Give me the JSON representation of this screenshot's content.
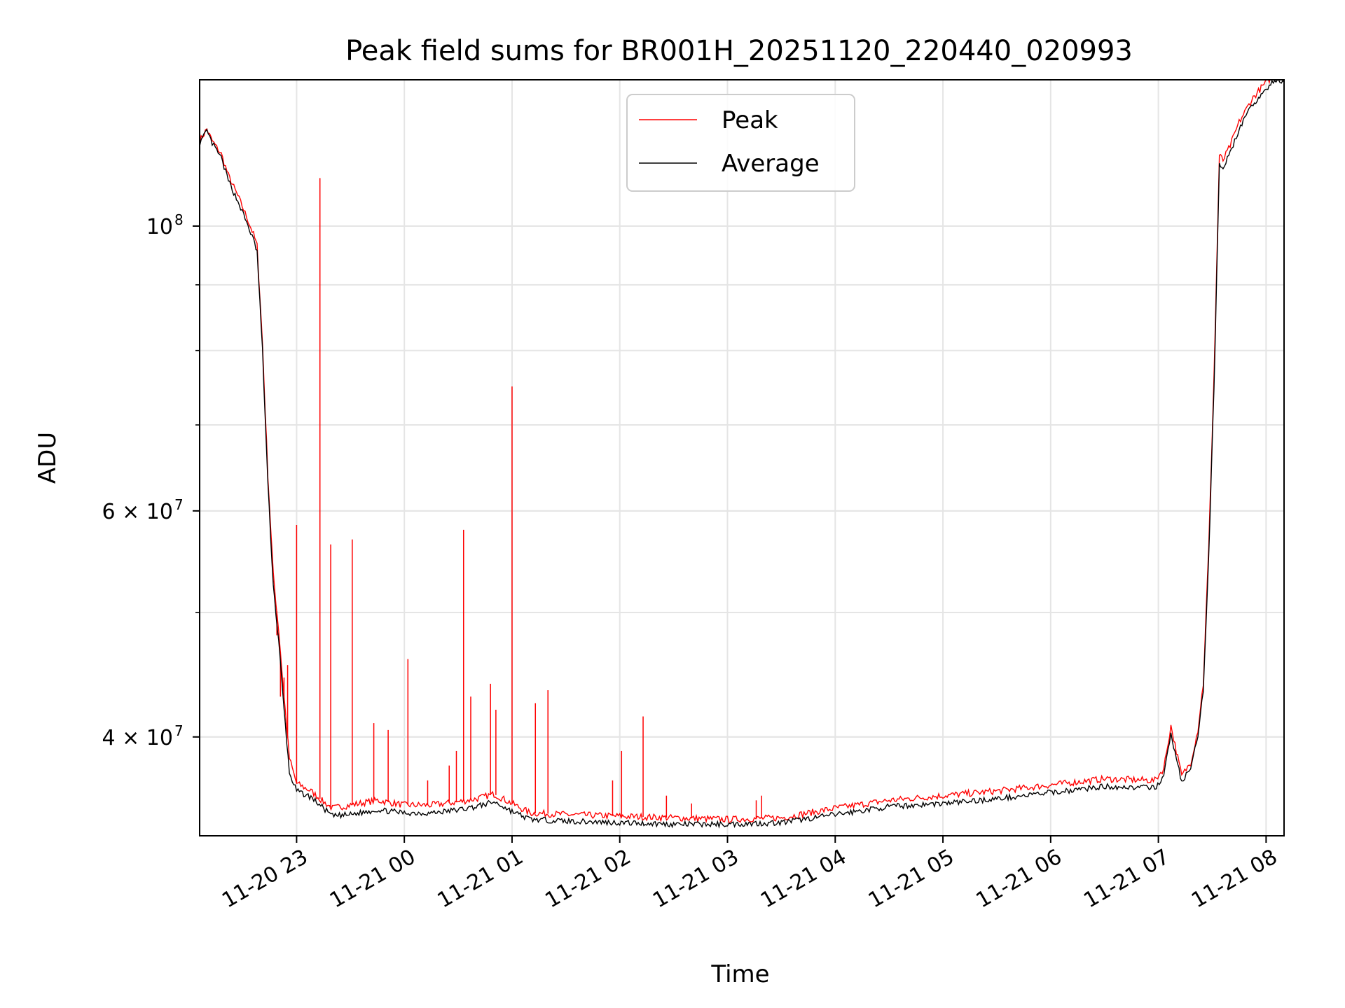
{
  "chart_data": {
    "type": "line",
    "title": "Peak field sums for BR001H_20251120_220440_020993",
    "xlabel": "Time",
    "ylabel": "ADU",
    "yscale": "log",
    "xlim": [
      "2025-11-20 22:06",
      "2025-11-21 08:10"
    ],
    "ylim": [
      33500000,
      130000000
    ],
    "grid": true,
    "legend_position": "top-center",
    "x_ticks": [
      {
        "t": "2025-11-20 23:00",
        "label": "11-20 23"
      },
      {
        "t": "2025-11-21 00:00",
        "label": "11-21 00"
      },
      {
        "t": "2025-11-21 01:00",
        "label": "11-21 01"
      },
      {
        "t": "2025-11-21 02:00",
        "label": "11-21 02"
      },
      {
        "t": "2025-11-21 03:00",
        "label": "11-21 03"
      },
      {
        "t": "2025-11-21 04:00",
        "label": "11-21 04"
      },
      {
        "t": "2025-11-21 05:00",
        "label": "11-21 05"
      },
      {
        "t": "2025-11-21 06:00",
        "label": "11-21 06"
      },
      {
        "t": "2025-11-21 07:00",
        "label": "11-21 07"
      },
      {
        "t": "2025-11-21 08:00",
        "label": "11-21 08"
      }
    ],
    "y_major_ticks": [
      {
        "value": 100000000,
        "base": "10",
        "exp": "8"
      },
      {
        "value": 60000000,
        "base": "6 × 10",
        "exp": "7"
      },
      {
        "value": 40000000,
        "base": "4 × 10",
        "exp": "7"
      }
    ],
    "y_minor_ticks": [
      40000000,
      50000000,
      60000000,
      70000000,
      80000000,
      90000000
    ],
    "series": [
      {
        "name": "Average",
        "color": "#000000",
        "points": [
          [
            "2025-11-20 22:06",
            116000000
          ],
          [
            "2025-11-20 22:10",
            118500000
          ],
          [
            "2025-11-20 22:13",
            116000000
          ],
          [
            "2025-11-20 22:18",
            113000000
          ],
          [
            "2025-11-20 22:22",
            108500000
          ],
          [
            "2025-11-20 22:28",
            104000000
          ],
          [
            "2025-11-20 22:33",
            100000000
          ],
          [
            "2025-11-20 22:36",
            97500000
          ],
          [
            "2025-11-20 22:38",
            95500000
          ],
          [
            "2025-11-20 22:41",
            80000000
          ],
          [
            "2025-11-20 22:44",
            63000000
          ],
          [
            "2025-11-20 22:47",
            52500000
          ],
          [
            "2025-11-20 22:50",
            47500000
          ],
          [
            "2025-11-20 22:53",
            42000000
          ],
          [
            "2025-11-20 22:56",
            37500000
          ],
          [
            "2025-11-20 23:00",
            36300000
          ],
          [
            "2025-11-20 23:08",
            35900000
          ],
          [
            "2025-11-20 23:15",
            35200000
          ],
          [
            "2025-11-20 23:20",
            34700000
          ],
          [
            "2025-11-20 23:30",
            34800000
          ],
          [
            "2025-11-20 23:45",
            35100000
          ],
          [
            "2025-11-21 00:00",
            34900000
          ],
          [
            "2025-11-21 00:15",
            34900000
          ],
          [
            "2025-11-21 00:30",
            35100000
          ],
          [
            "2025-11-21 00:40",
            35300000
          ],
          [
            "2025-11-21 00:50",
            35600000
          ],
          [
            "2025-11-21 01:00",
            35000000
          ],
          [
            "2025-11-21 01:10",
            34500000
          ],
          [
            "2025-11-21 01:30",
            34400000
          ],
          [
            "2025-11-21 02:00",
            34300000
          ],
          [
            "2025-11-21 02:30",
            34200000
          ],
          [
            "2025-11-21 03:00",
            34200000
          ],
          [
            "2025-11-21 03:30",
            34300000
          ],
          [
            "2025-11-21 04:00",
            34800000
          ],
          [
            "2025-11-21 04:30",
            35300000
          ],
          [
            "2025-11-21 05:00",
            35500000
          ],
          [
            "2025-11-21 05:30",
            35800000
          ],
          [
            "2025-11-21 06:00",
            36200000
          ],
          [
            "2025-11-21 06:30",
            36600000
          ],
          [
            "2025-11-21 06:58",
            36500000
          ],
          [
            "2025-11-21 07:03",
            37300000
          ],
          [
            "2025-11-21 07:07",
            40200000
          ],
          [
            "2025-11-21 07:10",
            38500000
          ],
          [
            "2025-11-21 07:13",
            36900000
          ],
          [
            "2025-11-21 07:18",
            37800000
          ],
          [
            "2025-11-21 07:22",
            40000000
          ],
          [
            "2025-11-21 07:25",
            43500000
          ],
          [
            "2025-11-21 07:28",
            55000000
          ],
          [
            "2025-11-21 07:31",
            75000000
          ],
          [
            "2025-11-21 07:34",
            112000000
          ],
          [
            "2025-11-21 07:36",
            111000000
          ],
          [
            "2025-11-21 07:40",
            114000000
          ],
          [
            "2025-11-21 07:45",
            119000000
          ],
          [
            "2025-11-21 07:52",
            124000000
          ],
          [
            "2025-11-21 07:58",
            127000000
          ],
          [
            "2025-11-21 08:04",
            129500000
          ],
          [
            "2025-11-21 08:10",
            129500000
          ]
        ]
      },
      {
        "name": "Peak",
        "color": "#ff0000",
        "points": [
          [
            "2025-11-20 22:06",
            116500000
          ],
          [
            "2025-11-20 22:10",
            119000000
          ],
          [
            "2025-11-20 22:13",
            116500000
          ],
          [
            "2025-11-20 22:18",
            113800000
          ],
          [
            "2025-11-20 22:22",
            109500000
          ],
          [
            "2025-11-20 22:28",
            105000000
          ],
          [
            "2025-11-20 22:33",
            101000000
          ],
          [
            "2025-11-20 22:36",
            98500000
          ],
          [
            "2025-11-20 22:38",
            96500000
          ],
          [
            "2025-11-20 22:41",
            81000000
          ],
          [
            "2025-11-20 22:44",
            64000000
          ],
          [
            "2025-11-20 22:47",
            53500000
          ],
          [
            "2025-11-20 22:50",
            48500000
          ],
          [
            "2025-11-20 22:53",
            43000000
          ],
          [
            "2025-11-20 22:56",
            38500000
          ],
          [
            "2025-11-20 23:00",
            36800000
          ],
          [
            "2025-11-20 23:08",
            36300000
          ],
          [
            "2025-11-20 23:15",
            35600000
          ],
          [
            "2025-11-20 23:20",
            35200000
          ],
          [
            "2025-11-20 23:30",
            35400000
          ],
          [
            "2025-11-20 23:45",
            35700000
          ],
          [
            "2025-11-21 00:00",
            35400000
          ],
          [
            "2025-11-21 00:15",
            35400000
          ],
          [
            "2025-11-21 00:30",
            35600000
          ],
          [
            "2025-11-21 00:40",
            35800000
          ],
          [
            "2025-11-21 00:50",
            36100000
          ],
          [
            "2025-11-21 01:00",
            35500000
          ],
          [
            "2025-11-21 01:10",
            34900000
          ],
          [
            "2025-11-21 01:30",
            34800000
          ],
          [
            "2025-11-21 02:00",
            34700000
          ],
          [
            "2025-11-21 02:30",
            34600000
          ],
          [
            "2025-11-21 03:00",
            34500000
          ],
          [
            "2025-11-21 03:30",
            34600000
          ],
          [
            "2025-11-21 04:00",
            35200000
          ],
          [
            "2025-11-21 04:30",
            35700000
          ],
          [
            "2025-11-21 05:00",
            36000000
          ],
          [
            "2025-11-21 05:30",
            36300000
          ],
          [
            "2025-11-21 06:00",
            36700000
          ],
          [
            "2025-11-21 06:30",
            37100000
          ],
          [
            "2025-11-21 06:58",
            37000000
          ],
          [
            "2025-11-21 07:03",
            37800000
          ],
          [
            "2025-11-21 07:07",
            40800000
          ],
          [
            "2025-11-21 07:10",
            39000000
          ],
          [
            "2025-11-21 07:13",
            37300000
          ],
          [
            "2025-11-21 07:18",
            38200000
          ],
          [
            "2025-11-21 07:22",
            40500000
          ],
          [
            "2025-11-21 07:25",
            44000000
          ],
          [
            "2025-11-21 07:28",
            56000000
          ],
          [
            "2025-11-21 07:31",
            76500000
          ],
          [
            "2025-11-21 07:34",
            113500000
          ],
          [
            "2025-11-21 07:36",
            112500000
          ],
          [
            "2025-11-21 07:40",
            115500000
          ],
          [
            "2025-11-21 07:45",
            120500000
          ],
          [
            "2025-11-21 07:52",
            125500000
          ],
          [
            "2025-11-21 07:58",
            128500000
          ],
          [
            "2025-11-21 08:04",
            131000000
          ],
          [
            "2025-11-21 08:10",
            130500000
          ]
        ],
        "spikes": [
          [
            "2025-11-20 22:49",
            48000000
          ],
          [
            "2025-11-20 22:51",
            43000000
          ],
          [
            "2025-11-20 22:53",
            44500000
          ],
          [
            "2025-11-20 22:55",
            45500000
          ],
          [
            "2025-11-20 23:00",
            58500000
          ],
          [
            "2025-11-20 23:13",
            109000000
          ],
          [
            "2025-11-20 23:19",
            56500000
          ],
          [
            "2025-11-20 23:31",
            57000000
          ],
          [
            "2025-11-20 23:43",
            41000000
          ],
          [
            "2025-11-20 23:51",
            40500000
          ],
          [
            "2025-11-21 00:02",
            46000000
          ],
          [
            "2025-11-21 00:13",
            37000000
          ],
          [
            "2025-11-21 00:25",
            38000000
          ],
          [
            "2025-11-21 00:29",
            39000000
          ],
          [
            "2025-11-21 00:33",
            58000000
          ],
          [
            "2025-11-21 00:37",
            43000000
          ],
          [
            "2025-11-21 00:48",
            44000000
          ],
          [
            "2025-11-21 00:51",
            42000000
          ],
          [
            "2025-11-21 01:00",
            75000000
          ],
          [
            "2025-11-21 01:13",
            42500000
          ],
          [
            "2025-11-21 01:20",
            43500000
          ],
          [
            "2025-11-21 01:56",
            37000000
          ],
          [
            "2025-11-21 02:01",
            39000000
          ],
          [
            "2025-11-21 02:13",
            41500000
          ],
          [
            "2025-11-21 02:26",
            36000000
          ],
          [
            "2025-11-21 02:40",
            35500000
          ],
          [
            "2025-11-21 03:16",
            35700000
          ],
          [
            "2025-11-21 03:19",
            36000000
          ]
        ]
      }
    ]
  }
}
